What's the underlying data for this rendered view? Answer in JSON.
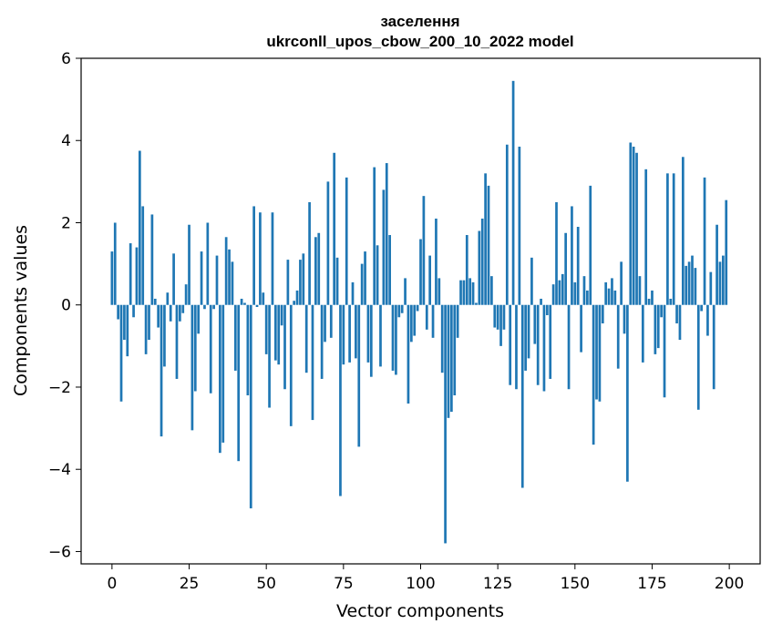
{
  "chart_data": {
    "type": "bar",
    "title_line1": "заселення",
    "title_line2": "ukrconll_upos_cbow_200_10_2022 model",
    "xlabel": "Vector components",
    "ylabel": "Components values",
    "xlim": [
      -10,
      210
    ],
    "ylim": [
      -6.3,
      6
    ],
    "xticks": [
      0,
      25,
      50,
      75,
      100,
      125,
      150,
      175,
      200
    ],
    "yticks": [
      -6,
      -4,
      -2,
      0,
      2,
      4,
      6
    ],
    "ytick_labels": [
      "−6",
      "−4",
      "−2",
      "0",
      "2",
      "4",
      "6"
    ],
    "bar_color": "#1f77b4",
    "grid": false,
    "legend": "none",
    "x": [
      0,
      1,
      2,
      3,
      4,
      5,
      6,
      7,
      8,
      9,
      10,
      11,
      12,
      13,
      14,
      15,
      16,
      17,
      18,
      19,
      20,
      21,
      22,
      23,
      24,
      25,
      26,
      27,
      28,
      29,
      30,
      31,
      32,
      33,
      34,
      35,
      36,
      37,
      38,
      39,
      40,
      41,
      42,
      43,
      44,
      45,
      46,
      47,
      48,
      49,
      50,
      51,
      52,
      53,
      54,
      55,
      56,
      57,
      58,
      59,
      60,
      61,
      62,
      63,
      64,
      65,
      66,
      67,
      68,
      69,
      70,
      71,
      72,
      73,
      74,
      75,
      76,
      77,
      78,
      79,
      80,
      81,
      82,
      83,
      84,
      85,
      86,
      87,
      88,
      89,
      90,
      91,
      92,
      93,
      94,
      95,
      96,
      97,
      98,
      99,
      100,
      101,
      102,
      103,
      104,
      105,
      106,
      107,
      108,
      109,
      110,
      111,
      112,
      113,
      114,
      115,
      116,
      117,
      118,
      119,
      120,
      121,
      122,
      123,
      124,
      125,
      126,
      127,
      128,
      129,
      130,
      131,
      132,
      133,
      134,
      135,
      136,
      137,
      138,
      139,
      140,
      141,
      142,
      143,
      144,
      145,
      146,
      147,
      148,
      149,
      150,
      151,
      152,
      153,
      154,
      155,
      156,
      157,
      158,
      159,
      160,
      161,
      162,
      163,
      164,
      165,
      166,
      167,
      168,
      169,
      170,
      171,
      172,
      173,
      174,
      175,
      176,
      177,
      178,
      179,
      180,
      181,
      182,
      183,
      184,
      185,
      186,
      187,
      188,
      189,
      190,
      191,
      192,
      193,
      194,
      195,
      196,
      197,
      198,
      199
    ],
    "values": [
      1.3,
      2.0,
      -0.35,
      -2.35,
      -0.85,
      -1.25,
      1.5,
      -0.3,
      1.4,
      3.75,
      2.4,
      -1.2,
      -0.85,
      2.2,
      0.15,
      -0.55,
      -3.2,
      -1.5,
      0.3,
      -0.4,
      1.25,
      -1.8,
      -0.4,
      -0.2,
      0.5,
      1.95,
      -3.05,
      -2.1,
      -0.7,
      1.3,
      -0.1,
      2.0,
      -2.15,
      -0.1,
      1.2,
      -3.6,
      -3.35,
      1.65,
      1.35,
      1.05,
      -1.6,
      -3.8,
      0.15,
      0.05,
      -2.2,
      -4.95,
      2.4,
      -0.05,
      2.25,
      0.3,
      -1.2,
      -2.5,
      2.25,
      -1.35,
      -1.45,
      -0.5,
      -2.05,
      1.1,
      -2.95,
      0.1,
      0.35,
      1.1,
      1.25,
      -1.65,
      2.5,
      -2.8,
      1.65,
      1.75,
      -1.8,
      -0.9,
      3.0,
      -0.8,
      3.7,
      1.15,
      -4.65,
      -1.45,
      3.1,
      -1.4,
      0.55,
      -1.3,
      -3.45,
      1.0,
      1.3,
      -1.4,
      -1.75,
      3.35,
      1.45,
      -1.5,
      2.8,
      3.45,
      1.7,
      -1.6,
      -1.7,
      -0.3,
      -0.2,
      0.65,
      -2.4,
      -0.9,
      -0.75,
      -0.15,
      1.6,
      2.65,
      -0.6,
      1.2,
      -0.8,
      2.1,
      0.65,
      -1.65,
      -5.8,
      -2.75,
      -2.6,
      -2.2,
      -0.8,
      0.6,
      0.6,
      1.7,
      0.65,
      0.55,
      0.05,
      1.8,
      2.1,
      3.2,
      2.9,
      0.7,
      -0.55,
      -0.6,
      -1.0,
      -0.6,
      3.9,
      -1.95,
      5.45,
      -2.05,
      3.85,
      -4.45,
      -1.6,
      -1.3,
      1.15,
      -0.95,
      -1.95,
      0.15,
      -2.1,
      -0.25,
      -1.8,
      0.5,
      2.5,
      0.6,
      0.75,
      1.75,
      -2.05,
      2.4,
      0.55,
      1.9,
      -1.15,
      0.7,
      0.35,
      2.9,
      -3.4,
      -2.3,
      -2.35,
      -0.45,
      0.55,
      0.4,
      0.65,
      0.35,
      -1.55,
      1.05,
      -0.7,
      -4.3,
      3.95,
      3.85,
      3.7,
      0.7,
      -1.4,
      3.3,
      0.15,
      0.35,
      -1.2,
      -1.05,
      -0.3,
      -2.25,
      3.2,
      0.15,
      3.2,
      -0.45,
      -0.85,
      3.6,
      0.95,
      1.05,
      1.2,
      0.9,
      -2.55,
      -0.15,
      3.1,
      -0.75,
      0.8,
      -2.05,
      1.95,
      1.05,
      1.2,
      2.55
    ]
  }
}
